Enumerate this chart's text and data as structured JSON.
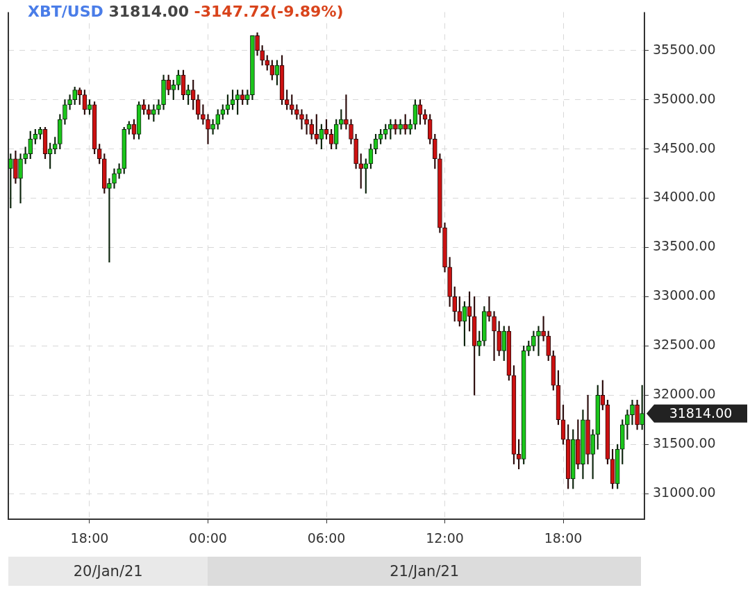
{
  "chart_data": {
    "type": "candlestick",
    "title": "XBT/USD",
    "subtitle": "31814.00",
    "annotations": [
      "-3147.72(-9.89%)",
      "20/Jan/21",
      "21/Jan/21",
      "31814.00"
    ],
    "x": [
      "--01-20T14:00",
      "--01-20T14:15",
      "--01-20T14:30",
      "--01-20T14:45",
      "--01-20T15:00",
      "--01-20T15:15",
      "--01-20T15:30",
      "--01-20T15:45",
      "--01-20T16:00",
      "--01-20T16:15",
      "--01-20T16:30",
      "--01-20T16:45",
      "--01-20T17:00",
      "--01-20T17:15",
      "--01-20T17:30",
      "--01-20T17:45",
      "--01-20T18:00",
      "--01-20T18:15",
      "--01-20T18:30",
      "--01-20T18:45",
      "--01-20T19:00",
      "--01-20T19:15",
      "--01-20T19:30",
      "--01-20T19:45",
      "--01-20T20:00",
      "--01-20T20:15",
      "--01-20T20:30",
      "--01-20T20:45",
      "--01-20T21:00",
      "--01-20T21:15",
      "--01-20T21:30",
      "--01-20T21:45",
      "--01-20T22:00",
      "--01-20T22:15",
      "--01-20T22:30",
      "--01-20T22:45",
      "--01-20T23:00",
      "--01-20T23:15",
      "--01-20T23:30",
      "--01-20T23:45",
      "--01-21T00:00",
      "--01-21T00:15",
      "--01-21T00:30",
      "--01-21T00:45",
      "--01-21T01:00",
      "--01-21T01:15",
      "--01-21T01:30",
      "--01-21T01:45",
      "--01-21T02:00",
      "--01-21T02:15",
      "--01-21T02:30",
      "--01-21T02:45",
      "--01-21T03:00",
      "--01-21T03:15",
      "--01-21T03:30",
      "--01-21T03:45",
      "--01-21T04:00",
      "--01-21T04:15",
      "--01-21T04:30",
      "--01-21T04:45",
      "--01-21T05:00",
      "--01-21T05:15",
      "--01-21T05:30",
      "--01-21T05:45",
      "--01-21T06:00",
      "--01-21T06:15",
      "--01-21T06:30",
      "--01-21T06:45",
      "--01-21T07:00",
      "--01-21T07:15",
      "--01-21T07:30",
      "--01-21T07:45",
      "--01-21T08:00",
      "--01-21T08:15",
      "--01-21T08:30",
      "--01-21T08:45",
      "--01-21T09:00",
      "--01-21T09:15",
      "--01-21T09:30",
      "--01-21T09:45",
      "--01-21T10:00",
      "--01-21T10:15",
      "--01-21T10:30",
      "--01-21T10:45",
      "--01-21T11:00",
      "--01-21T11:15",
      "--01-21T11:30",
      "--01-21T11:45",
      "--01-21T12:00",
      "--01-21T12:15",
      "--01-21T12:30",
      "--01-21T12:45",
      "--01-21T13:00",
      "--01-21T13:15",
      "--01-21T13:30",
      "--01-21T13:45",
      "--01-21T14:00",
      "--01-21T14:15",
      "--01-21T14:30",
      "--01-21T14:45",
      "--01-21T15:00",
      "--01-21T15:15",
      "--01-21T15:30",
      "--01-21T15:45",
      "--01-21T16:00",
      "--01-21T16:15",
      "--01-21T16:30",
      "--01-21T16:45",
      "--01-21T17:00",
      "--01-21T17:15",
      "--01-21T17:30",
      "--01-21T17:45",
      "--01-21T18:00",
      "--01-21T18:15",
      "--01-21T18:30",
      "--01-21T18:45",
      "--01-21T19:00",
      "--01-21T19:15",
      "--01-21T19:30",
      "--01-21T19:45",
      "--01-21T20:00",
      "--01-21T20:15",
      "--01-21T20:30",
      "--01-21T20:45",
      "--01-21T21:00",
      "--01-21T21:15",
      "--01-21T21:30",
      "--01-21T21:45",
      "--01-21T22:00"
    ],
    "ohlc": [
      [
        34300,
        34450,
        33900,
        34400
      ],
      [
        34400,
        34480,
        34150,
        34200
      ],
      [
        34200,
        34450,
        33950,
        34400
      ],
      [
        34400,
        34520,
        34350,
        34450
      ],
      [
        34450,
        34680,
        34400,
        34600
      ],
      [
        34600,
        34700,
        34550,
        34650
      ],
      [
        34650,
        34720,
        34600,
        34700
      ],
      [
        34700,
        34720,
        34400,
        34450
      ],
      [
        34450,
        34560,
        34300,
        34500
      ],
      [
        34500,
        34620,
        34450,
        34550
      ],
      [
        34550,
        34850,
        34500,
        34800
      ],
      [
        34800,
        35000,
        34750,
        34950
      ],
      [
        34950,
        35050,
        34900,
        35000
      ],
      [
        35000,
        35130,
        34950,
        35100
      ],
      [
        35100,
        35120,
        34950,
        35050
      ],
      [
        35050,
        35100,
        34850,
        34900
      ],
      [
        34900,
        35000,
        34850,
        34950
      ],
      [
        34950,
        34980,
        34450,
        34500
      ],
      [
        34500,
        34550,
        34350,
        34400
      ],
      [
        34400,
        34450,
        34050,
        34100
      ],
      [
        34100,
        34200,
        33350,
        34150
      ],
      [
        34150,
        34300,
        34100,
        34250
      ],
      [
        34250,
        34350,
        34200,
        34300
      ],
      [
        34300,
        34720,
        34250,
        34700
      ],
      [
        34700,
        34780,
        34650,
        34750
      ],
      [
        34750,
        34800,
        34600,
        34650
      ],
      [
        34650,
        34980,
        34600,
        34950
      ],
      [
        34950,
        35000,
        34850,
        34900
      ],
      [
        34900,
        34950,
        34800,
        34850
      ],
      [
        34850,
        34950,
        34780,
        34900
      ],
      [
        34900,
        35000,
        34850,
        34950
      ],
      [
        34950,
        35250,
        34900,
        35200
      ],
      [
        35200,
        35250,
        35050,
        35100
      ],
      [
        35100,
        35200,
        35000,
        35150
      ],
      [
        35150,
        35300,
        35100,
        35250
      ],
      [
        35250,
        35300,
        35000,
        35050
      ],
      [
        35050,
        35150,
        34950,
        35100
      ],
      [
        35100,
        35200,
        34900,
        35000
      ],
      [
        35000,
        35050,
        34800,
        34850
      ],
      [
        34850,
        34950,
        34750,
        34800
      ],
      [
        34800,
        34850,
        34550,
        34700
      ],
      [
        34700,
        34800,
        34650,
        34750
      ],
      [
        34750,
        34900,
        34700,
        34850
      ],
      [
        34850,
        34950,
        34800,
        34900
      ],
      [
        34900,
        35050,
        34850,
        34950
      ],
      [
        34950,
        35100,
        34900,
        35000
      ],
      [
        35000,
        35100,
        34850,
        35050
      ],
      [
        35050,
        35100,
        34950,
        35000
      ],
      [
        35000,
        35100,
        34950,
        35050
      ],
      [
        35050,
        35650,
        35000,
        35650
      ],
      [
        35650,
        35680,
        35450,
        35500
      ],
      [
        35500,
        35550,
        35350,
        35400
      ],
      [
        35400,
        35450,
        35300,
        35350
      ],
      [
        35350,
        35400,
        35200,
        35250
      ],
      [
        35250,
        35400,
        35150,
        35350
      ],
      [
        35350,
        35450,
        34950,
        35000
      ],
      [
        35000,
        35100,
        34900,
        34950
      ],
      [
        34950,
        35050,
        34850,
        34900
      ],
      [
        34900,
        34950,
        34800,
        34850
      ],
      [
        34850,
        34900,
        34700,
        34800
      ],
      [
        34800,
        34850,
        34650,
        34750
      ],
      [
        34750,
        34800,
        34600,
        34650
      ],
      [
        34650,
        34850,
        34550,
        34600
      ],
      [
        34600,
        34750,
        34500,
        34700
      ],
      [
        34700,
        34800,
        34600,
        34650
      ],
      [
        34650,
        34700,
        34500,
        34550
      ],
      [
        34550,
        34800,
        34500,
        34750
      ],
      [
        34750,
        34900,
        34700,
        34800
      ],
      [
        34800,
        35050,
        34700,
        34750
      ],
      [
        34750,
        34800,
        34550,
        34600
      ],
      [
        34600,
        34650,
        34300,
        34350
      ],
      [
        34350,
        34450,
        34100,
        34300
      ],
      [
        34300,
        34400,
        34050,
        34350
      ],
      [
        34350,
        34550,
        34300,
        34500
      ],
      [
        34500,
        34650,
        34450,
        34600
      ],
      [
        34600,
        34700,
        34550,
        34650
      ],
      [
        34650,
        34750,
        34600,
        34700
      ],
      [
        34700,
        34800,
        34600,
        34750
      ],
      [
        34750,
        34800,
        34650,
        34700
      ],
      [
        34700,
        34800,
        34650,
        34750
      ],
      [
        34750,
        34850,
        34650,
        34700
      ],
      [
        34700,
        34800,
        34650,
        34750
      ],
      [
        34750,
        35000,
        34700,
        34950
      ],
      [
        34950,
        35000,
        34750,
        34850
      ],
      [
        34850,
        34900,
        34750,
        34800
      ],
      [
        34800,
        34850,
        34550,
        34600
      ],
      [
        34600,
        34650,
        34300,
        34400
      ],
      [
        34400,
        34450,
        33650,
        33700
      ],
      [
        33700,
        33750,
        33250,
        33300
      ],
      [
        33300,
        33400,
        32900,
        33000
      ],
      [
        33000,
        33100,
        32750,
        32850
      ],
      [
        32850,
        33000,
        32700,
        32750
      ],
      [
        32750,
        32950,
        32500,
        32900
      ],
      [
        32900,
        33050,
        32650,
        32800
      ],
      [
        32800,
        33000,
        32000,
        32500
      ],
      [
        32500,
        32650,
        32400,
        32550
      ],
      [
        32550,
        32900,
        32500,
        32850
      ],
      [
        32850,
        33000,
        32750,
        32800
      ],
      [
        32800,
        32850,
        32350,
        32650
      ],
      [
        32650,
        32750,
        32400,
        32450
      ],
      [
        32450,
        32700,
        32350,
        32650
      ],
      [
        32650,
        32700,
        32150,
        32200
      ],
      [
        32200,
        32300,
        31300,
        31400
      ],
      [
        31400,
        31550,
        31250,
        31350
      ],
      [
        31350,
        32500,
        31300,
        32450
      ],
      [
        32450,
        32550,
        32400,
        32500
      ],
      [
        32500,
        32650,
        32450,
        32600
      ],
      [
        32600,
        32700,
        32400,
        32650
      ],
      [
        32650,
        32800,
        32550,
        32600
      ],
      [
        32600,
        32650,
        32350,
        32400
      ],
      [
        32400,
        32450,
        32050,
        32100
      ],
      [
        32100,
        32250,
        31700,
        31750
      ],
      [
        31750,
        31900,
        31500,
        31550
      ],
      [
        31550,
        31700,
        31050,
        31150
      ],
      [
        31150,
        31650,
        31050,
        31550
      ],
      [
        31550,
        31750,
        31250,
        31300
      ],
      [
        31300,
        31850,
        31150,
        31750
      ],
      [
        31750,
        32000,
        31300,
        31400
      ],
      [
        31400,
        31650,
        31150,
        31600
      ],
      [
        31600,
        32100,
        31450,
        32000
      ],
      [
        32000,
        32150,
        31850,
        31900
      ],
      [
        31900,
        31950,
        31300,
        31350
      ],
      [
        31350,
        31450,
        31050,
        31100
      ],
      [
        31100,
        31500,
        31050,
        31450
      ],
      [
        31450,
        31750,
        31300,
        31700
      ],
      [
        31700,
        31850,
        31550,
        31800
      ],
      [
        31800,
        31950,
        31700,
        31900
      ],
      [
        31900,
        31950,
        31650,
        31700
      ],
      [
        31700,
        32100,
        31650,
        31814
      ]
    ],
    "xlim": [
      "--01-20T13:53",
      "--01-21T22:07"
    ],
    "xticks": [
      {
        "value": "--01-20T18:00",
        "label": "18:00"
      },
      {
        "value": "--01-21T00:00",
        "label": "00:00"
      },
      {
        "value": "--01-21T06:00",
        "label": "06:00"
      },
      {
        "value": "--01-21T12:00",
        "label": "12:00"
      },
      {
        "value": "--01-21T18:00",
        "label": "18:00"
      }
    ],
    "ylim": [
      30740,
      35890
    ],
    "yticks": [
      {
        "value": 31000,
        "label": "31000.00"
      },
      {
        "value": 31500,
        "label": "31500.00"
      },
      {
        "value": 32000,
        "label": "32000.00"
      },
      {
        "value": 32500,
        "label": "32500.00"
      },
      {
        "value": 33000,
        "label": "33000.00"
      },
      {
        "value": 33500,
        "label": "33500.00"
      },
      {
        "value": 34000,
        "label": "34000.00"
      },
      {
        "value": 34500,
        "label": "34500.00"
      },
      {
        "value": 35000,
        "label": "35000.00"
      },
      {
        "value": 35500,
        "label": "35500.00"
      }
    ],
    "grid": true,
    "legend": false
  }
}
